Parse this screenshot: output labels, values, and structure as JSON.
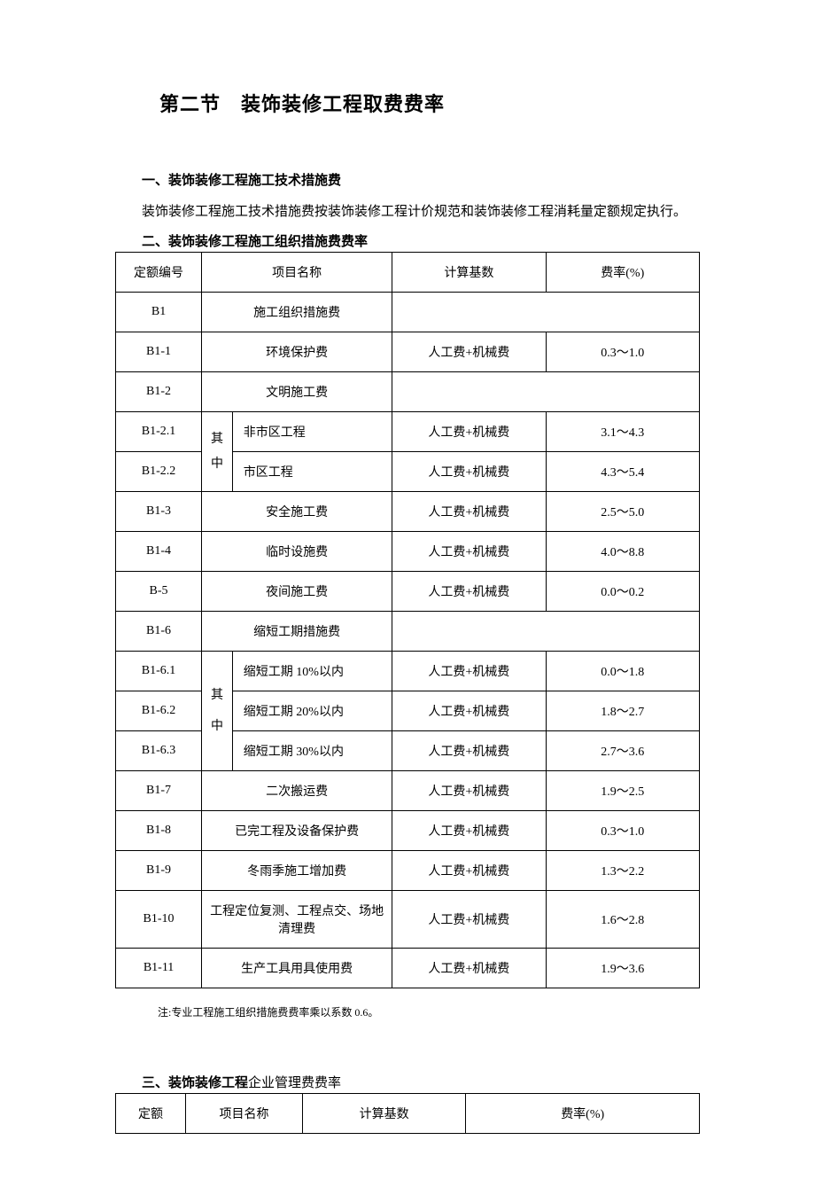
{
  "section_title": "第二节　装饰装修工程取费费率",
  "heading1": "一、装饰装修工程施工技术措施费",
  "paragraph1": "装饰装修工程施工技术措施费按装饰装修工程计价规范和装饰装修工程消耗量定额规定执行。",
  "heading2": "二、装饰装修工程施工组织措施费费率",
  "table2": {
    "headers": {
      "code": "定额编号",
      "name": "项目名称",
      "base": "计算基数",
      "rate": "费率(%)"
    },
    "rows": [
      {
        "code": "B1",
        "name": "施工组织措施费",
        "base": "",
        "rate": "",
        "span_rest": true
      },
      {
        "code": "B1-1",
        "name": "环境保护费",
        "base": "人工费+机械费",
        "rate": "0.3～1.0"
      },
      {
        "code": "B1-2",
        "name": "文明施工费",
        "base": "",
        "rate": "",
        "span_rest": true
      },
      {
        "code": "B1-2.1",
        "sub": "其",
        "name": "非市区工程",
        "base": "人工费+机械费",
        "rate": "3.1～4.3",
        "has_sub_start": true
      },
      {
        "code": "B1-2.2",
        "sub": "中",
        "name": "市区工程",
        "base": "人工费+机械费",
        "rate": "4.3～5.4"
      },
      {
        "code": "B1-3",
        "name": "安全施工费",
        "base": "人工费+机械费",
        "rate": "2.5～5.0"
      },
      {
        "code": "B1-4",
        "name": "临时设施费",
        "base": "人工费+机械费",
        "rate": "4.0～8.8"
      },
      {
        "code": "B-5",
        "name": "夜间施工费",
        "base": "人工费+机械费",
        "rate": "0.0～0.2"
      },
      {
        "code": "B1-6",
        "name": "缩短工期措施费",
        "base": "",
        "rate": "",
        "span_rest": true
      },
      {
        "code": "B1-6.1",
        "sub": "其",
        "name": "缩短工期 10%以内",
        "base": "人工费+机械费",
        "rate": "0.0～1.8"
      },
      {
        "code": "B1-6.2",
        "name": "缩短工期 20%以内",
        "base": "人工费+机械费",
        "rate": "1.8～2.7"
      },
      {
        "code": "B1-6.3",
        "sub": "中",
        "name": "缩短工期 30%以内",
        "base": "人工费+机械费",
        "rate": "2.7～3.6"
      },
      {
        "code": "B1-7",
        "name": "二次搬运费",
        "base": "人工费+机械费",
        "rate": "1.9～2.5"
      },
      {
        "code": "B1-8",
        "name": "已完工程及设备保护费",
        "base": "人工费+机械费",
        "rate": "0.3～1.0"
      },
      {
        "code": "B1-9",
        "name": "冬雨季施工增加费",
        "base": "人工费+机械费",
        "rate": "1.3～2.2"
      },
      {
        "code": "B1-10",
        "name": "工程定位复测、工程点交、场地清理费",
        "base": "人工费+机械费",
        "rate": "1.6～2.8"
      },
      {
        "code": "B1-11",
        "name": "生产工具用具使用费",
        "base": "人工费+机械费",
        "rate": "1.9～3.6"
      }
    ],
    "qizhong": "其中"
  },
  "note": "注:专业工程施工组织措施费费率乘以系数 0.6。",
  "heading3_bold": "三、装饰装修工程",
  "heading3_rest": "企业管理费费率",
  "table3": {
    "headers": {
      "code": "定额",
      "name": "项目名称",
      "base": "计算基数",
      "rate": "费率(%)"
    }
  }
}
